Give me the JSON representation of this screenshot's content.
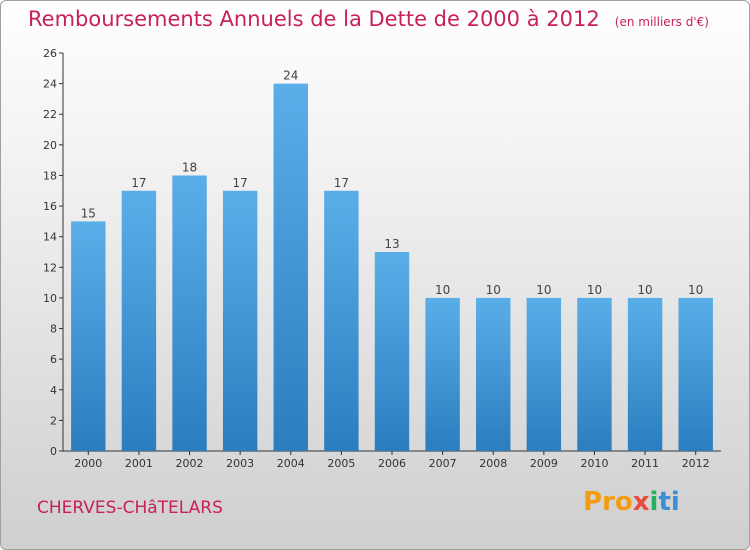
{
  "header": {
    "title": "Remboursements Annuels de la Dette de 2000 à 2012",
    "unit": "(en milliers d'€)"
  },
  "footer": {
    "commune": "CHERVES-CHâTELARS",
    "logo": [
      "Pro",
      "x",
      "i",
      "ti"
    ]
  },
  "colors": {
    "accent": "#c8205a",
    "bar_top": "#5aaee8",
    "bar_bottom": "#2a7ec0"
  },
  "chart_data": {
    "type": "bar",
    "title": "Remboursements Annuels de la Dette de 2000 à 2012",
    "categories": [
      "2000",
      "2001",
      "2002",
      "2003",
      "2004",
      "2005",
      "2006",
      "2007",
      "2008",
      "2009",
      "2010",
      "2011",
      "2012"
    ],
    "values": [
      15,
      17,
      18,
      17,
      24,
      17,
      13,
      10,
      10,
      10,
      10,
      10,
      10
    ],
    "ylim": [
      0,
      26
    ],
    "yticks": [
      0,
      2,
      4,
      6,
      8,
      10,
      12,
      14,
      16,
      18,
      20,
      22,
      24,
      26
    ],
    "grid": false,
    "xlabel": "",
    "ylabel": ""
  }
}
